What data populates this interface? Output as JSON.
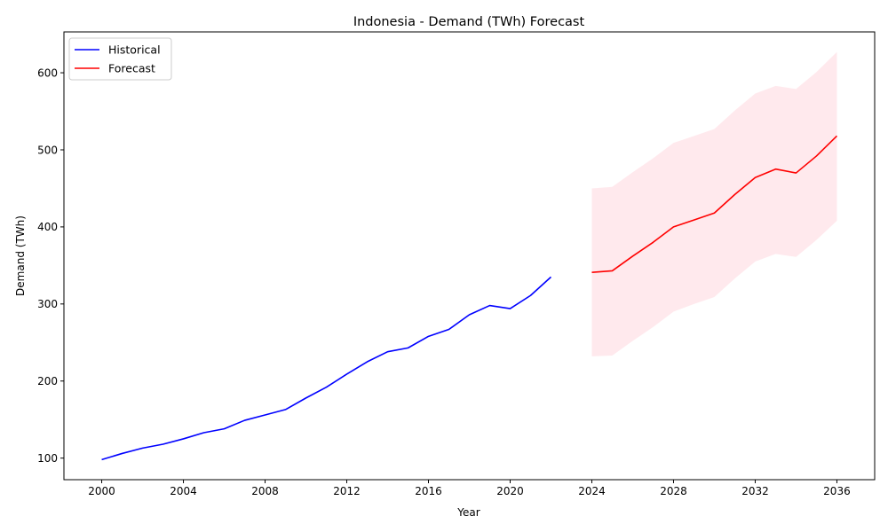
{
  "chart_data": {
    "type": "line",
    "title": "Indonesia - Demand (TWh) Forecast",
    "xlabel": "Year",
    "ylabel": "Demand (TWh)",
    "xlim": [
      1998.15,
      2037.85
    ],
    "ylim": [
      72,
      653
    ],
    "x_ticks": [
      2000,
      2004,
      2008,
      2012,
      2016,
      2020,
      2024,
      2028,
      2032,
      2036
    ],
    "y_ticks": [
      100,
      200,
      300,
      400,
      500,
      600
    ],
    "grid": false,
    "legend_position": "top-left",
    "series": [
      {
        "name": "Historical",
        "color": "#0000ff",
        "x": [
          2000,
          2001,
          2002,
          2003,
          2004,
          2005,
          2006,
          2007,
          2008,
          2009,
          2010,
          2011,
          2012,
          2013,
          2014,
          2015,
          2016,
          2017,
          2018,
          2019,
          2020,
          2021,
          2022
        ],
        "y": [
          98,
          106,
          113,
          118,
          125,
          133,
          138,
          149,
          156,
          163,
          178,
          192,
          209,
          225,
          238,
          243,
          258,
          267,
          286,
          298,
          294,
          311,
          335
        ]
      },
      {
        "name": "Forecast",
        "color": "#ff0000",
        "x": [
          2024,
          2025,
          2026,
          2027,
          2028,
          2029,
          2030,
          2031,
          2032,
          2033,
          2034,
          2035,
          2036
        ],
        "y": [
          341,
          343,
          362,
          380,
          400,
          409,
          418,
          442,
          464,
          475,
          470,
          492,
          518
        ],
        "band_lower": [
          232,
          233,
          252,
          270,
          290,
          300,
          309,
          333,
          355,
          365,
          361,
          383,
          408
        ],
        "band_upper": [
          450,
          452,
          471,
          489,
          509,
          518,
          527,
          551,
          573,
          583,
          579,
          601,
          627
        ],
        "band_color": "#ffc0cb"
      }
    ]
  }
}
